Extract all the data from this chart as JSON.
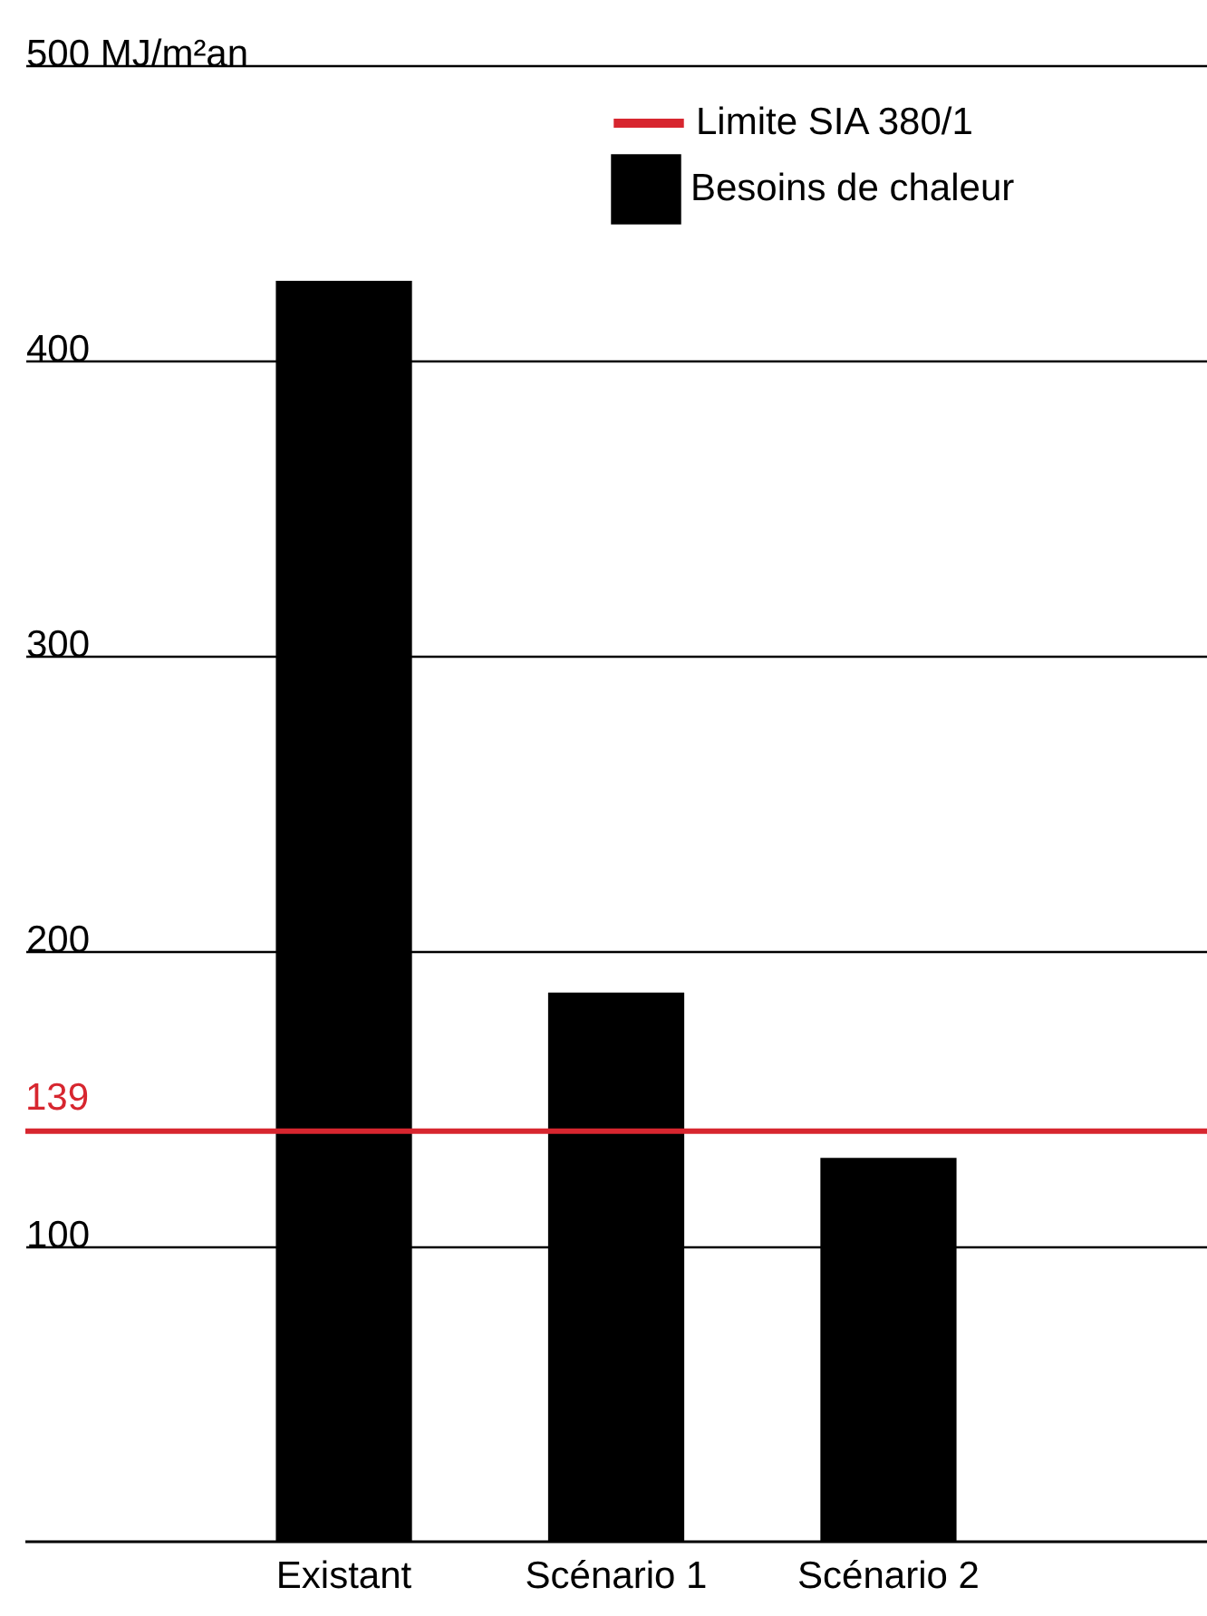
{
  "chart_data": {
    "type": "bar",
    "categories": [
      "Existant",
      "Scénario 1",
      "Scénario 2"
    ],
    "series": [
      {
        "name": "Besoins de chaleur",
        "color": "#000000",
        "values": [
          427,
          186,
          130
        ]
      }
    ],
    "ylim": [
      0,
      500
    ],
    "yticks": [
      100,
      200,
      300,
      400,
      {
        "value": 500,
        "label": "500 MJ/m²an"
      }
    ],
    "ref_lines": [
      {
        "axis": "y",
        "value": 139,
        "label": "Limite SIA 380/1",
        "color": "#d7262f"
      }
    ],
    "annotations": [
      {
        "text": "139",
        "y": 139
      }
    ],
    "grid": "y",
    "legend": "top right"
  }
}
